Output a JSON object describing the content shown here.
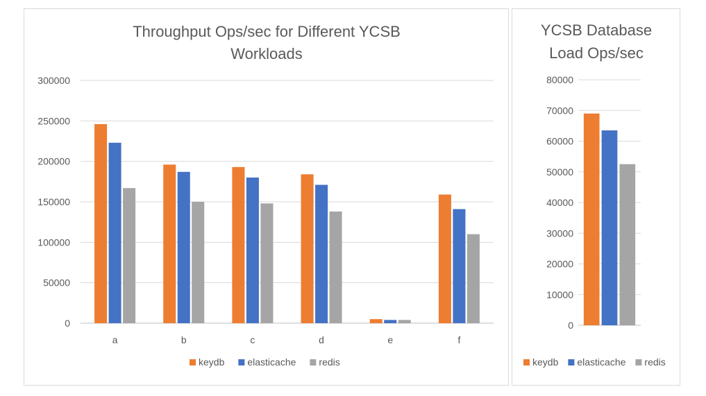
{
  "chart_data": [
    {
      "type": "bar",
      "title_lines": [
        "Throughput Ops/sec for Different YCSB",
        "Workloads"
      ],
      "categories": [
        "a",
        "b",
        "c",
        "d",
        "e",
        "f"
      ],
      "series": [
        {
          "name": "keydb",
          "color": "#ED7D31",
          "values": [
            246000,
            196000,
            193000,
            184000,
            5000,
            159000
          ]
        },
        {
          "name": "elasticache",
          "color": "#4472C4",
          "values": [
            223000,
            187000,
            180000,
            171000,
            4000,
            141000
          ]
        },
        {
          "name": "redis",
          "color": "#A5A5A5",
          "values": [
            167000,
            150000,
            148000,
            138000,
            4000,
            110000
          ]
        }
      ],
      "ylim": [
        0,
        300000
      ],
      "yticks": [
        "0",
        "50000",
        "100000",
        "150000",
        "200000",
        "250000",
        "300000"
      ],
      "grid": true,
      "legend": "bottom"
    },
    {
      "type": "bar",
      "title_lines": [
        "YCSB Database",
        "Load Ops/sec"
      ],
      "categories": [
        ""
      ],
      "series": [
        {
          "name": "keydb",
          "color": "#ED7D31",
          "values": [
            69000
          ]
        },
        {
          "name": "elasticache",
          "color": "#4472C4",
          "values": [
            63500
          ]
        },
        {
          "name": "redis",
          "color": "#A5A5A5",
          "values": [
            52500
          ]
        }
      ],
      "ylim": [
        0,
        80000
      ],
      "yticks": [
        "0",
        "10000",
        "20000",
        "30000",
        "40000",
        "50000",
        "60000",
        "70000",
        "80000"
      ],
      "grid": true,
      "legend": "bottom"
    }
  ]
}
